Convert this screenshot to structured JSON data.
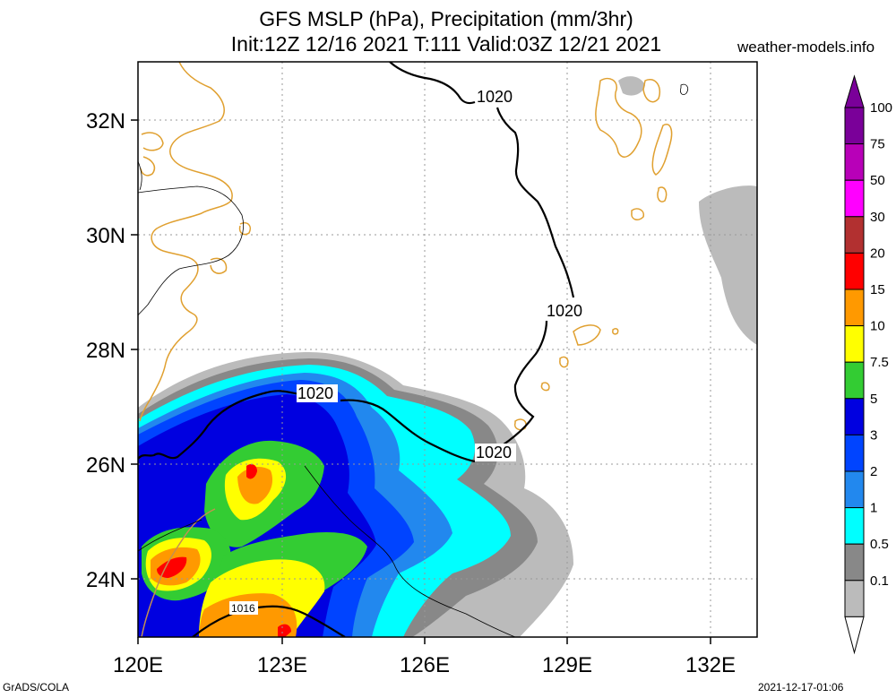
{
  "header": {
    "title_line1": "GFS MSLP (hPa), Precipitation (mm/3hr)",
    "title_line2": "Init:12Z 12/16 2021 T:111 Valid:03Z 12/21 2021",
    "site": "weather-models.info"
  },
  "footer": {
    "left": "GrADS/COLA",
    "right": "2021-12-17-01:06"
  },
  "axes": {
    "x_ticks": [
      "120E",
      "123E",
      "126E",
      "129E",
      "132E"
    ],
    "y_ticks": [
      "32N",
      "30N",
      "28N",
      "26N",
      "24N"
    ]
  },
  "contours": {
    "c1020_a": "1020",
    "c1020_b": "1020",
    "c1020_c": "1020",
    "c1020_d": "1020",
    "c1016": "1016"
  },
  "colorbar": {
    "labels": [
      "100",
      "75",
      "50",
      "30",
      "20",
      "15",
      "10",
      "7.5",
      "5",
      "3",
      "2",
      "1",
      "0.5",
      "0.1"
    ],
    "colors": [
      "#7a0099",
      "#b800b8",
      "#ff00ff",
      "#b23030",
      "#ff0000",
      "#ff9900",
      "#ffff00",
      "#33cc33",
      "#0000e0",
      "#0044ff",
      "#2288ee",
      "#00ffff",
      "#888888",
      "#bbbbbb"
    ]
  }
}
